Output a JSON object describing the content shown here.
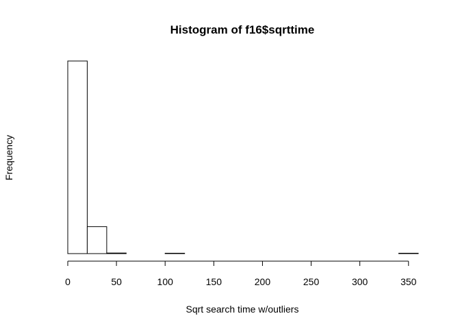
{
  "chart_data": {
    "type": "bar",
    "title": "Histogram of f16$sqrttime",
    "xlabel": "Sqrt search time w/outliers",
    "ylabel": "Frequency",
    "x_ticks": [
      0,
      50,
      100,
      150,
      200,
      250,
      300,
      350
    ],
    "xlim": [
      0,
      360
    ],
    "ylim": [
      0,
      1000
    ],
    "y_axis_shown": false,
    "bins": [
      {
        "start": 0,
        "end": 20,
        "count": 1000
      },
      {
        "start": 20,
        "end": 40,
        "count": 140
      },
      {
        "start": 40,
        "end": 60,
        "count": 3
      },
      {
        "start": 60,
        "end": 80,
        "count": 0
      },
      {
        "start": 80,
        "end": 100,
        "count": 0
      },
      {
        "start": 100,
        "end": 120,
        "count": 2
      },
      {
        "start": 120,
        "end": 140,
        "count": 0
      },
      {
        "start": 140,
        "end": 160,
        "count": 0
      },
      {
        "start": 160,
        "end": 180,
        "count": 0
      },
      {
        "start": 180,
        "end": 200,
        "count": 0
      },
      {
        "start": 200,
        "end": 220,
        "count": 0
      },
      {
        "start": 220,
        "end": 240,
        "count": 0
      },
      {
        "start": 240,
        "end": 260,
        "count": 0
      },
      {
        "start": 260,
        "end": 280,
        "count": 0
      },
      {
        "start": 280,
        "end": 300,
        "count": 0
      },
      {
        "start": 300,
        "end": 320,
        "count": 0
      },
      {
        "start": 320,
        "end": 340,
        "count": 0
      },
      {
        "start": 340,
        "end": 360,
        "count": 2
      }
    ],
    "bar_fill": "#ffffff",
    "bar_stroke": "#000000",
    "grid": false,
    "legend": "none"
  }
}
